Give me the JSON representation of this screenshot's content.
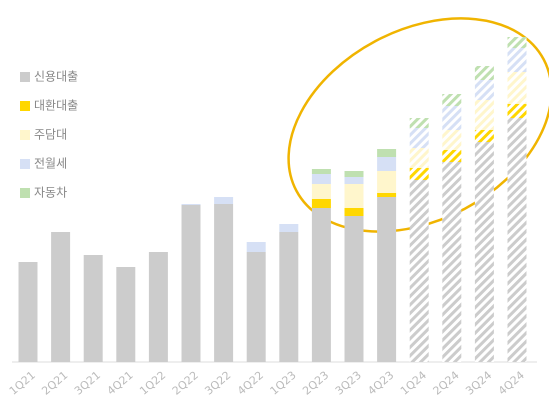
{
  "chart_data": {
    "type": "bar",
    "stacked": true,
    "categories": [
      "1Q21",
      "2Q21",
      "3Q21",
      "4Q21",
      "1Q22",
      "2Q22",
      "3Q22",
      "4Q22",
      "1Q23",
      "2Q23",
      "3Q23",
      "4Q23",
      "1Q24",
      "2Q24",
      "3Q24",
      "4Q24"
    ],
    "hatched": [
      false,
      false,
      false,
      false,
      false,
      false,
      false,
      false,
      false,
      false,
      false,
      false,
      true,
      true,
      true,
      true
    ],
    "series": [
      {
        "name": "신용대출",
        "color": "#cccccc",
        "values": [
          100,
          130,
          107,
          95,
          110,
          157,
          158,
          110,
          130,
          154,
          146,
          165,
          182,
          200,
          220,
          244
        ]
      },
      {
        "name": "대환대출",
        "color": "#ffd700",
        "values": [
          0,
          0,
          0,
          0,
          0,
          0,
          0,
          0,
          0,
          9,
          8,
          4,
          12,
          12,
          12,
          14
        ]
      },
      {
        "name": "주담대",
        "color": "#fff6cc",
        "values": [
          0,
          0,
          0,
          0,
          0,
          0,
          0,
          0,
          0,
          15,
          24,
          22,
          20,
          20,
          30,
          32
        ]
      },
      {
        "name": "전월세",
        "color": "#d6e0f5",
        "values": [
          0,
          0,
          0,
          0,
          0,
          1,
          7,
          10,
          8,
          10,
          7,
          14,
          20,
          24,
          20,
          24
        ]
      },
      {
        "name": "자동차",
        "color": "#bfe0b0",
        "values": [
          0,
          0,
          0,
          0,
          0,
          0,
          0,
          0,
          0,
          5,
          6,
          8,
          10,
          12,
          14,
          11
        ]
      }
    ],
    "ylim": [
      0,
      330
    ]
  }
}
